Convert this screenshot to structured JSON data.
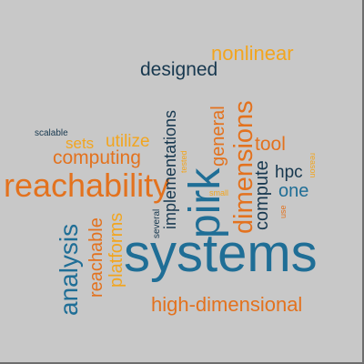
{
  "palette": {
    "background": "#c8c8c8",
    "blue": "#1f6e96",
    "navy": "#17384f",
    "orange": "#e3721e",
    "yellow": "#f2a51f"
  },
  "words": {
    "systems": "systems",
    "pirk": "pirk",
    "reachability": "reachability",
    "dimensions": "dimensions",
    "analysis": "analysis",
    "high_dimensional": "high-dimensional",
    "nonlinear": "nonlinear",
    "designed": "designed",
    "computing": "computing",
    "utilize": "utilize",
    "sets": "sets",
    "implementations": "implementations",
    "general": "general",
    "tool": "tool",
    "hpc": "hpc",
    "one": "one",
    "compute": "compute",
    "reachable": "reachable",
    "platforms": "platforms",
    "scalable": "scalable",
    "several": "several",
    "tested": "tested",
    "small": "small",
    "use": "use",
    "reason": "reason"
  }
}
